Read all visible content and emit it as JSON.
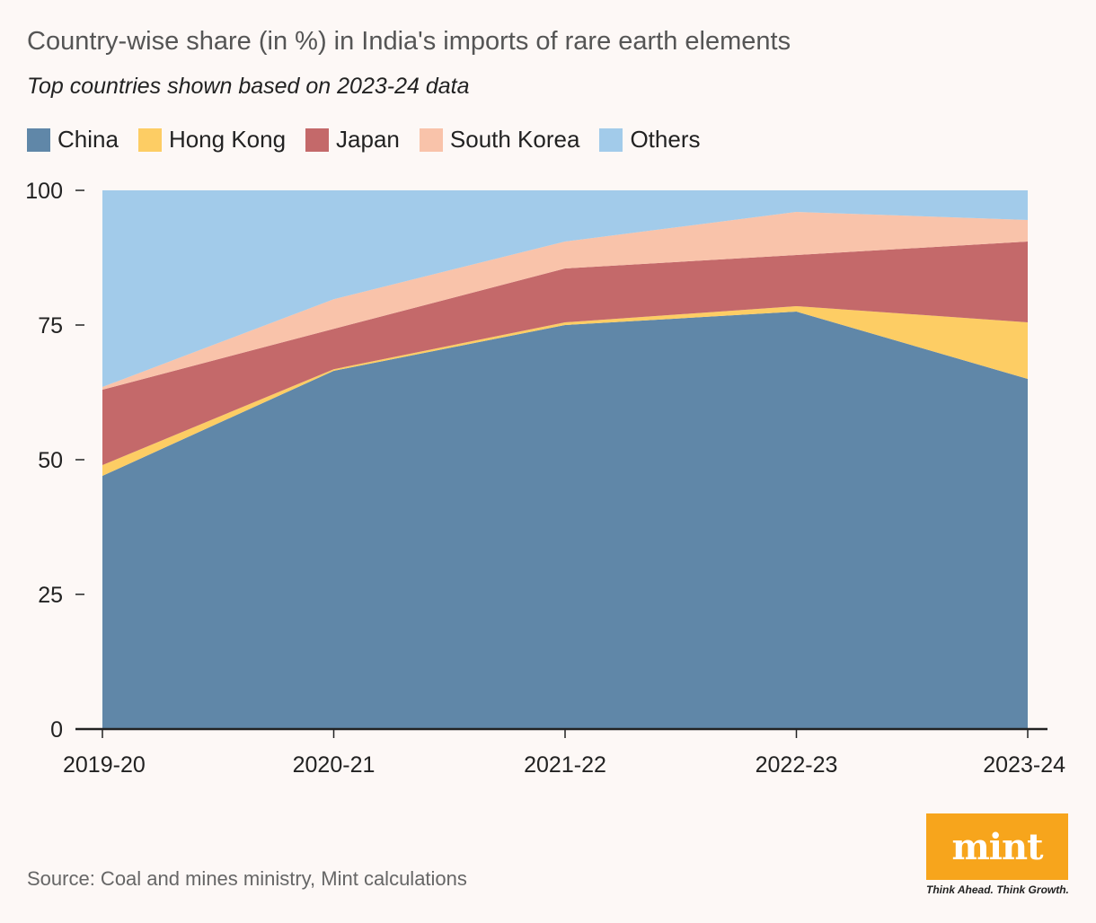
{
  "chart_data": {
    "type": "area",
    "stacked": true,
    "title": "Country-wise share (in %) in India's imports of rare earth elements",
    "subtitle": "Top countries shown based on 2023-24 data",
    "categories": [
      "2019-20",
      "2020-21",
      "2021-22",
      "2022-23",
      "2023-24"
    ],
    "ylim": [
      0,
      100
    ],
    "yticks": [
      0,
      25,
      50,
      75,
      100
    ],
    "series": [
      {
        "name": "China",
        "color": "#6087a8",
        "values": [
          47.0,
          66.5,
          75.0,
          77.5,
          65.0
        ]
      },
      {
        "name": "Hong Kong",
        "color": "#fdcd64",
        "values": [
          2.0,
          0.3,
          0.5,
          1.0,
          10.5
        ]
      },
      {
        "name": "Japan",
        "color": "#c4696a",
        "values": [
          14.0,
          7.5,
          10.0,
          9.5,
          15.0
        ]
      },
      {
        "name": "South Korea",
        "color": "#f9c3aa",
        "values": [
          0.5,
          5.5,
          5.0,
          8.0,
          4.0
        ]
      },
      {
        "name": "Others",
        "color": "#a2cbea",
        "values": [
          36.5,
          20.2,
          9.5,
          4.0,
          5.5
        ]
      }
    ]
  },
  "source": "Source: Coal and mines ministry, Mint calculations",
  "logo": {
    "text": "mint",
    "tagline": "Think Ahead. Think Growth."
  }
}
